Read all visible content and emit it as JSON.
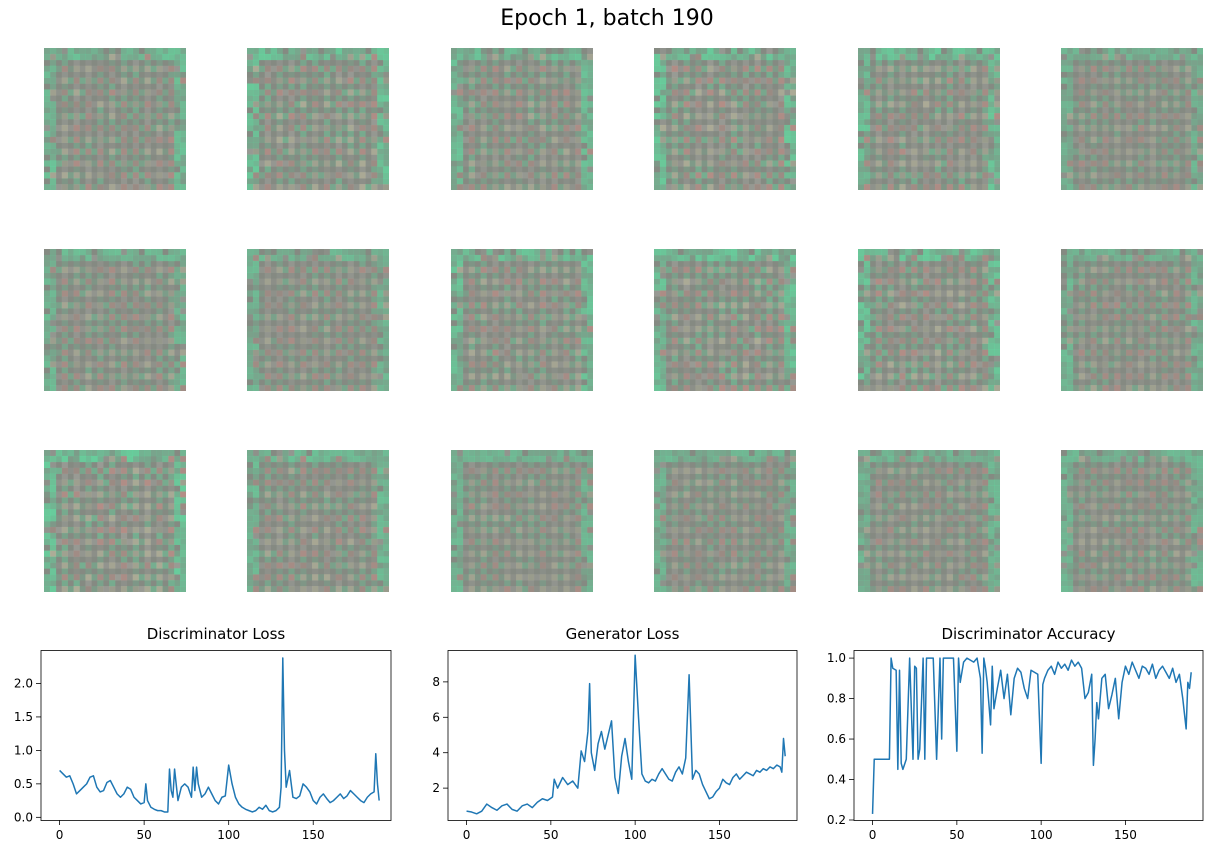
{
  "figure": {
    "suptitle": "Epoch 1, batch 190"
  },
  "sample_grid": {
    "rows": 3,
    "cols": 6,
    "base_color": "#858a82",
    "highlight_color": "#5ee3a4",
    "accent_color": "#d4908a"
  },
  "colors": {
    "line": "#1f77b4",
    "axes": "#000000"
  },
  "chart_data": [
    {
      "type": "line",
      "title": "Discriminator Loss",
      "xlabel": "",
      "ylabel": "",
      "xlim": [
        -11,
        196
      ],
      "ylim": [
        -0.04,
        2.5
      ],
      "xticks": [
        0,
        50,
        100,
        150
      ],
      "yticks": [
        0.0,
        0.5,
        1.0,
        1.5,
        2.0
      ],
      "ytick_labels": [
        "0.0",
        "0.5",
        "1.0",
        "1.5",
        "2.0"
      ],
      "x": [
        0,
        2,
        4,
        6,
        8,
        10,
        12,
        14,
        16,
        18,
        20,
        22,
        24,
        26,
        28,
        30,
        32,
        34,
        36,
        38,
        40,
        42,
        44,
        46,
        48,
        50,
        51,
        52,
        54,
        56,
        58,
        60,
        62,
        64,
        65,
        66,
        67,
        68,
        70,
        72,
        74,
        76,
        78,
        79,
        80,
        81,
        82,
        84,
        86,
        88,
        90,
        92,
        94,
        96,
        98,
        100,
        102,
        104,
        106,
        108,
        110,
        112,
        114,
        116,
        118,
        120,
        122,
        124,
        126,
        128,
        130,
        131,
        132,
        133,
        134,
        136,
        138,
        140,
        142,
        144,
        146,
        148,
        150,
        152,
        154,
        156,
        158,
        160,
        162,
        164,
        166,
        168,
        170,
        172,
        174,
        176,
        178,
        180,
        182,
        184,
        186,
        187,
        188,
        189
      ],
      "values": [
        0.7,
        0.65,
        0.6,
        0.62,
        0.5,
        0.35,
        0.4,
        0.45,
        0.5,
        0.6,
        0.62,
        0.45,
        0.38,
        0.4,
        0.52,
        0.55,
        0.45,
        0.35,
        0.3,
        0.35,
        0.45,
        0.42,
        0.3,
        0.25,
        0.2,
        0.22,
        0.5,
        0.25,
        0.15,
        0.12,
        0.1,
        0.1,
        0.08,
        0.08,
        0.72,
        0.4,
        0.3,
        0.72,
        0.25,
        0.45,
        0.5,
        0.45,
        0.3,
        0.75,
        0.4,
        0.75,
        0.5,
        0.3,
        0.35,
        0.45,
        0.35,
        0.25,
        0.2,
        0.3,
        0.32,
        0.78,
        0.5,
        0.3,
        0.2,
        0.15,
        0.12,
        0.1,
        0.08,
        0.1,
        0.15,
        0.12,
        0.18,
        0.1,
        0.08,
        0.1,
        0.15,
        0.45,
        2.38,
        1.0,
        0.45,
        0.7,
        0.3,
        0.28,
        0.32,
        0.5,
        0.45,
        0.38,
        0.25,
        0.2,
        0.3,
        0.35,
        0.28,
        0.22,
        0.25,
        0.3,
        0.35,
        0.28,
        0.32,
        0.4,
        0.35,
        0.3,
        0.25,
        0.22,
        0.3,
        0.35,
        0.38,
        0.95,
        0.5,
        0.25
      ]
    },
    {
      "type": "line",
      "title": "Generator Loss",
      "xlabel": "",
      "ylabel": "",
      "xlim": [
        -11,
        196
      ],
      "ylim": [
        0.2,
        9.8
      ],
      "xticks": [
        0,
        50,
        100,
        150
      ],
      "yticks": [
        2,
        4,
        6,
        8
      ],
      "ytick_labels": [
        "2",
        "4",
        "6",
        "8"
      ],
      "x": [
        0,
        3,
        6,
        9,
        12,
        15,
        18,
        21,
        24,
        27,
        30,
        33,
        36,
        39,
        42,
        45,
        48,
        51,
        52,
        54,
        57,
        60,
        63,
        66,
        68,
        70,
        72,
        73,
        74,
        76,
        78,
        80,
        82,
        84,
        86,
        88,
        90,
        92,
        94,
        96,
        98,
        100,
        102,
        104,
        106,
        108,
        110,
        112,
        114,
        116,
        118,
        120,
        122,
        124,
        126,
        128,
        130,
        132,
        133,
        134,
        136,
        138,
        140,
        142,
        144,
        146,
        148,
        150,
        152,
        154,
        156,
        158,
        160,
        162,
        164,
        166,
        168,
        170,
        172,
        174,
        176,
        178,
        180,
        182,
        184,
        186,
        187,
        188,
        189
      ],
      "values": [
        0.7,
        0.65,
        0.55,
        0.7,
        1.1,
        0.9,
        0.75,
        1.0,
        1.1,
        0.8,
        0.7,
        1.0,
        1.1,
        0.9,
        1.2,
        1.4,
        1.3,
        1.5,
        2.5,
        2.0,
        2.6,
        2.2,
        2.4,
        2.0,
        4.1,
        3.5,
        5.2,
        7.9,
        4.0,
        3.0,
        4.5,
        5.2,
        4.2,
        5.0,
        5.8,
        2.6,
        1.7,
        3.8,
        4.8,
        3.5,
        2.5,
        9.5,
        6.0,
        2.8,
        2.4,
        2.3,
        2.5,
        2.4,
        2.8,
        3.1,
        2.8,
        2.5,
        2.4,
        2.9,
        3.2,
        2.8,
        3.7,
        8.4,
        5.5,
        2.5,
        3.0,
        2.8,
        2.2,
        1.8,
        1.4,
        1.5,
        1.8,
        2.0,
        2.5,
        2.3,
        2.2,
        2.6,
        2.8,
        2.5,
        2.7,
        2.9,
        2.8,
        2.7,
        3.0,
        2.9,
        3.1,
        3.0,
        3.2,
        3.1,
        3.3,
        3.2,
        2.9,
        4.8,
        3.8
      ]
    },
    {
      "type": "line",
      "title": "Discriminator Accuracy",
      "xlabel": "",
      "ylabel": "",
      "xlim": [
        -11,
        196
      ],
      "ylim": [
        0.2,
        1.04
      ],
      "xticks": [
        0,
        50,
        100,
        150
      ],
      "yticks": [
        0.2,
        0.4,
        0.6,
        0.8,
        1.0
      ],
      "ytick_labels": [
        "0.2",
        "0.4",
        "0.6",
        "0.8",
        "1.0"
      ],
      "x": [
        0,
        1,
        4,
        8,
        10,
        11,
        12,
        14,
        15,
        16,
        17,
        18,
        20,
        22,
        24,
        25,
        26,
        27,
        28,
        30,
        31,
        32,
        34,
        36,
        38,
        40,
        41,
        42,
        44,
        46,
        48,
        50,
        51,
        52,
        54,
        56,
        58,
        60,
        62,
        64,
        65,
        66,
        67,
        68,
        70,
        71,
        72,
        74,
        76,
        78,
        80,
        82,
        84,
        86,
        88,
        90,
        92,
        94,
        96,
        98,
        100,
        101,
        102,
        104,
        106,
        108,
        110,
        112,
        114,
        116,
        118,
        120,
        122,
        124,
        126,
        128,
        130,
        131,
        132,
        133,
        134,
        136,
        138,
        140,
        142,
        144,
        146,
        148,
        150,
        152,
        154,
        156,
        158,
        160,
        162,
        164,
        166,
        168,
        170,
        172,
        174,
        176,
        178,
        180,
        182,
        184,
        186,
        187,
        188,
        189
      ],
      "values": [
        0.23,
        0.5,
        0.5,
        0.5,
        0.5,
        1.0,
        0.95,
        0.94,
        0.45,
        0.94,
        0.48,
        0.45,
        0.5,
        1.0,
        0.5,
        0.96,
        0.95,
        0.5,
        0.55,
        1.0,
        0.5,
        1.0,
        1.0,
        1.0,
        0.5,
        1.0,
        0.6,
        1.0,
        1.0,
        1.0,
        1.0,
        0.54,
        1.0,
        0.88,
        0.98,
        1.0,
        0.99,
        0.98,
        1.0,
        0.9,
        0.53,
        1.0,
        0.95,
        0.88,
        0.67,
        0.96,
        0.75,
        0.85,
        0.94,
        0.8,
        0.92,
        0.72,
        0.9,
        0.95,
        0.93,
        0.85,
        0.8,
        0.94,
        0.93,
        0.92,
        0.48,
        0.87,
        0.9,
        0.94,
        0.96,
        0.92,
        0.98,
        0.95,
        0.97,
        0.94,
        0.99,
        0.96,
        0.98,
        0.95,
        0.8,
        0.83,
        0.92,
        0.47,
        0.6,
        0.78,
        0.7,
        0.9,
        0.92,
        0.75,
        0.82,
        0.9,
        0.7,
        0.88,
        0.96,
        0.92,
        0.98,
        0.94,
        0.9,
        0.96,
        0.95,
        0.92,
        0.97,
        0.9,
        0.94,
        0.96,
        0.93,
        0.9,
        0.95,
        0.88,
        0.92,
        0.8,
        0.65,
        0.88,
        0.85,
        0.93
      ]
    }
  ]
}
